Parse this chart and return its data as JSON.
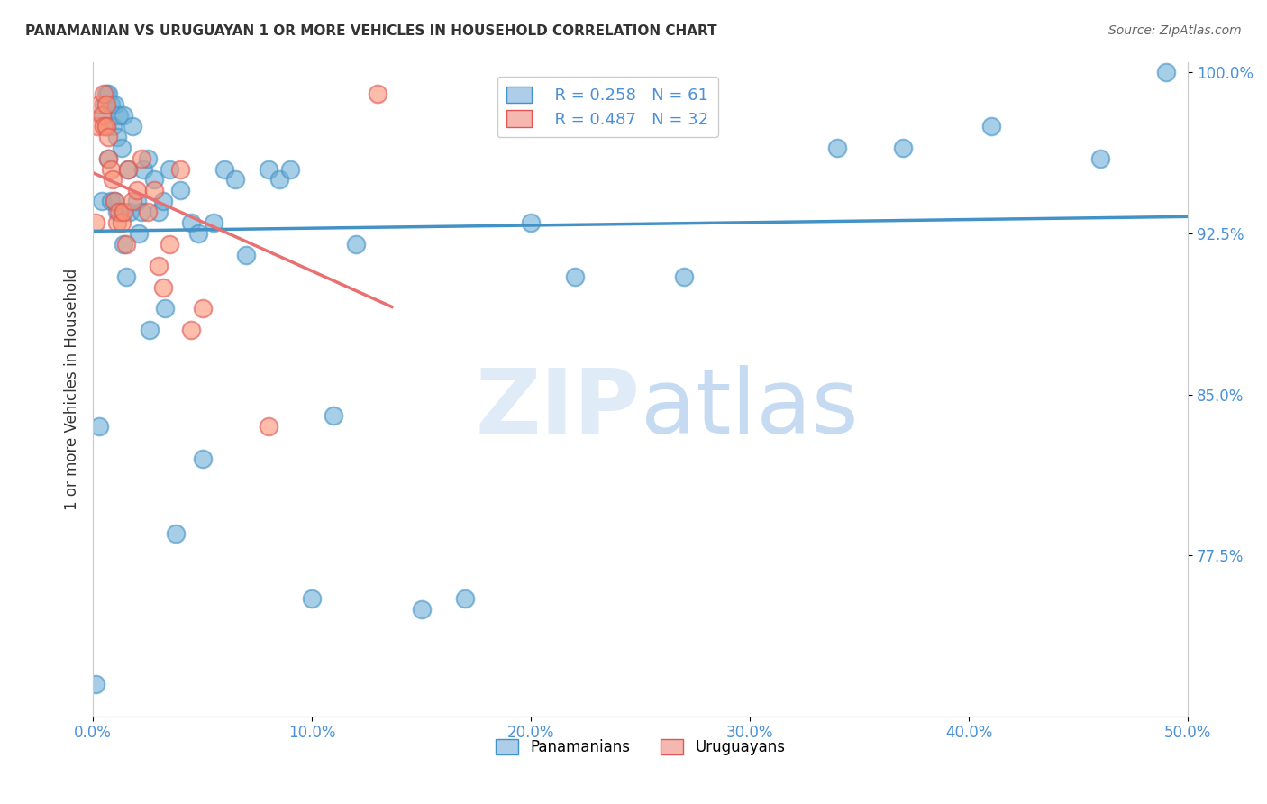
{
  "title": "PANAMANIAN VS URUGUAYAN 1 OR MORE VEHICLES IN HOUSEHOLD CORRELATION CHART",
  "source": "Source: ZipAtlas.com",
  "xlabel": "",
  "ylabel": "1 or more Vehicles in Household",
  "xlim": [
    0.0,
    0.5
  ],
  "ylim": [
    0.7,
    1.005
  ],
  "xticks": [
    0.0,
    0.1,
    0.2,
    0.3,
    0.4,
    0.5
  ],
  "xticklabels": [
    "0.0%",
    "10.0%",
    "20.0%",
    "30.0%",
    "40.0%",
    "50.0%"
  ],
  "yticks": [
    0.775,
    0.85,
    0.925,
    1.0
  ],
  "yticklabels": [
    "77.5%",
    "85.0%",
    "92.5%",
    "100.0%"
  ],
  "blue_R": 0.258,
  "blue_N": 61,
  "pink_R": 0.487,
  "pink_N": 32,
  "blue_color": "#6baed6",
  "pink_color": "#fc9272",
  "blue_line_color": "#4292c6",
  "pink_line_color": "#e87070",
  "watermark": "ZIPatlas",
  "legend_labels": [
    "Panamanians",
    "Uruguayans"
  ],
  "blue_x": [
    0.001,
    0.003,
    0.004,
    0.005,
    0.005,
    0.006,
    0.006,
    0.007,
    0.007,
    0.008,
    0.008,
    0.009,
    0.01,
    0.01,
    0.011,
    0.011,
    0.012,
    0.013,
    0.013,
    0.014,
    0.014,
    0.015,
    0.016,
    0.017,
    0.018,
    0.02,
    0.021,
    0.022,
    0.023,
    0.025,
    0.026,
    0.028,
    0.03,
    0.032,
    0.033,
    0.035,
    0.038,
    0.04,
    0.045,
    0.048,
    0.05,
    0.055,
    0.06,
    0.065,
    0.07,
    0.08,
    0.085,
    0.09,
    0.1,
    0.11,
    0.12,
    0.15,
    0.17,
    0.2,
    0.22,
    0.27,
    0.34,
    0.37,
    0.41,
    0.46,
    0.49
  ],
  "blue_y": [
    0.715,
    0.835,
    0.94,
    0.98,
    0.985,
    0.975,
    0.99,
    0.96,
    0.99,
    0.985,
    0.94,
    0.975,
    0.94,
    0.985,
    0.97,
    0.935,
    0.98,
    0.935,
    0.965,
    0.92,
    0.98,
    0.905,
    0.955,
    0.935,
    0.975,
    0.94,
    0.925,
    0.935,
    0.955,
    0.96,
    0.88,
    0.95,
    0.935,
    0.94,
    0.89,
    0.955,
    0.785,
    0.945,
    0.93,
    0.925,
    0.82,
    0.93,
    0.955,
    0.95,
    0.915,
    0.955,
    0.95,
    0.955,
    0.755,
    0.84,
    0.92,
    0.75,
    0.755,
    0.93,
    0.905,
    0.905,
    0.965,
    0.965,
    0.975,
    0.96,
    1.0
  ],
  "pink_x": [
    0.001,
    0.002,
    0.003,
    0.004,
    0.005,
    0.005,
    0.006,
    0.006,
    0.007,
    0.007,
    0.008,
    0.009,
    0.01,
    0.011,
    0.012,
    0.013,
    0.014,
    0.015,
    0.016,
    0.018,
    0.02,
    0.022,
    0.025,
    0.028,
    0.03,
    0.032,
    0.035,
    0.04,
    0.045,
    0.05,
    0.08,
    0.13
  ],
  "pink_y": [
    0.93,
    0.975,
    0.985,
    0.98,
    0.99,
    0.975,
    0.985,
    0.975,
    0.97,
    0.96,
    0.955,
    0.95,
    0.94,
    0.93,
    0.935,
    0.93,
    0.935,
    0.92,
    0.955,
    0.94,
    0.945,
    0.96,
    0.935,
    0.945,
    0.91,
    0.9,
    0.92,
    0.955,
    0.88,
    0.89,
    0.835,
    0.99
  ]
}
